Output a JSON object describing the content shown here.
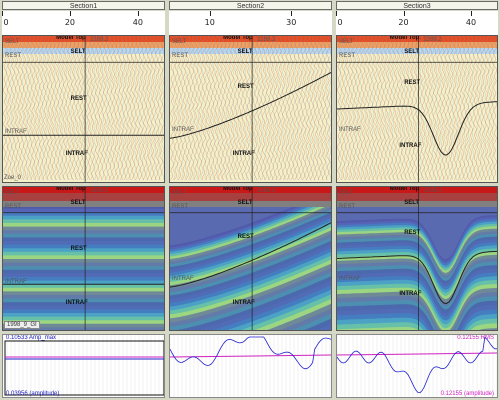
{
  "sections": [
    {
      "label": "Section1"
    },
    {
      "label": "Section2"
    },
    {
      "label": "Section3"
    }
  ],
  "rulers": [
    {
      "ticks": [
        {
          "v": 0,
          "t": "0"
        },
        {
          "v": 20,
          "t": "20"
        },
        {
          "v": 40,
          "t": "40"
        }
      ],
      "min": 0,
      "max": 48
    },
    {
      "ticks": [
        {
          "v": 10,
          "t": "10"
        },
        {
          "v": 30,
          "t": "30"
        }
      ],
      "min": 0,
      "max": 40
    },
    {
      "ticks": [
        {
          "v": 0,
          "t": "0"
        },
        {
          "v": 20,
          "t": "20"
        },
        {
          "v": 40,
          "t": "40"
        }
      ],
      "min": 0,
      "max": 48
    }
  ],
  "horizon_labels": {
    "model_top": "Model Top",
    "selt": "SELT",
    "rest": "REST",
    "intraf": "INTRAF",
    "well": "2289.2"
  },
  "seismic_tag": "Zoe_0",
  "impedance_tag": "1998_9_GI",
  "bottom": {
    "left_top": "0.10533 Amp_max",
    "left_bottom": "0.03956 (amplitude)",
    "right_top": "0.12155 RMS",
    "right_bottom": "0.12155 (amplitude)"
  },
  "colors": {
    "rms_line": "#d020c0",
    "amp_line": "#2020d0",
    "horizon": "#222222",
    "label_magenta": "#c020c0",
    "label_blue": "#2020c0"
  }
}
